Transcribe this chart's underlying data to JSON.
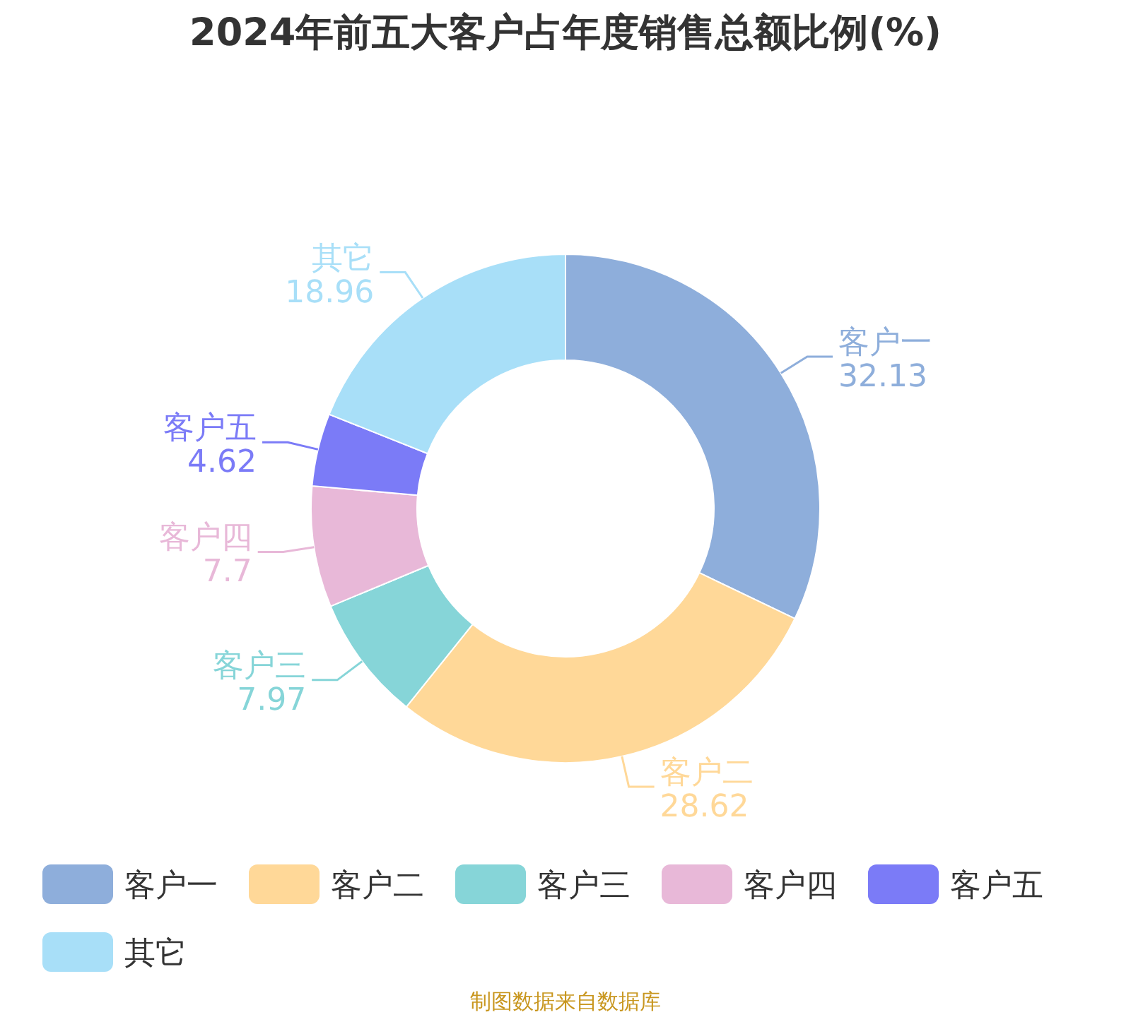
{
  "chart_data": {
    "type": "donut",
    "title": "2024年前五大客户占年度销售总额比例(%)",
    "categories": [
      "客户一",
      "客户二",
      "客户三",
      "客户四",
      "客户五",
      "其它"
    ],
    "values": [
      32.13,
      28.62,
      7.97,
      7.7,
      4.62,
      18.96
    ],
    "colors": [
      "#8eaedb",
      "#ffd898",
      "#86d5d8",
      "#e8b8d8",
      "#7b7bf7",
      "#a8dff8"
    ],
    "data_labels": true,
    "legend": "bottom",
    "annotations": [
      "制图数据来自数据库"
    ]
  }
}
